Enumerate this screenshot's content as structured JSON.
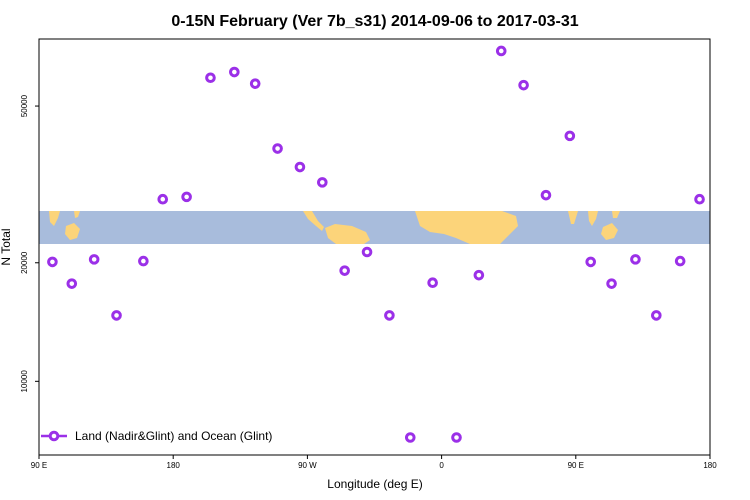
{
  "chart_data": {
    "type": "scatter",
    "title": "0-15N February (Ver 7b_s31)   2014-09-06 to 2017-03-31",
    "xlabel": "Longitude (deg E)",
    "ylabel": "N Total",
    "x_ticks": [
      {
        "value": 90,
        "label": "90 E"
      },
      {
        "value": 180,
        "label": "180"
      },
      {
        "value": 270,
        "label": "90 W"
      },
      {
        "value": 360,
        "label": "0"
      },
      {
        "value": 450,
        "label": "90 E"
      },
      {
        "value": 540,
        "label": "180"
      }
    ],
    "y_ticks": [
      {
        "value": 10000,
        "label": "10000"
      },
      {
        "value": 20000,
        "label": "20000"
      },
      {
        "value": 50000,
        "label": "50000"
      }
    ],
    "xlim": [
      90,
      540
    ],
    "ylim_log": [
      6500,
      74000
    ],
    "y_scale": "log",
    "map_band_lat": "0-15N",
    "series": [
      {
        "name": "Land (Nadir&Glint) and Ocean (Glint)",
        "color": "#9b30e8",
        "points": [
          {
            "x": 99,
            "y": 20100
          },
          {
            "x": 112,
            "y": 17700
          },
          {
            "x": 127,
            "y": 20400
          },
          {
            "x": 142,
            "y": 14700
          },
          {
            "x": 160,
            "y": 20200
          },
          {
            "x": 173,
            "y": 29000
          },
          {
            "x": 189,
            "y": 29400
          },
          {
            "x": 205,
            "y": 59000
          },
          {
            "x": 221,
            "y": 61000
          },
          {
            "x": 235,
            "y": 57000
          },
          {
            "x": 250,
            "y": 39000
          },
          {
            "x": 265,
            "y": 35000
          },
          {
            "x": 280,
            "y": 32000
          },
          {
            "x": 295,
            "y": 19100
          },
          {
            "x": 310,
            "y": 21300
          },
          {
            "x": 325,
            "y": 14700
          },
          {
            "x": 339,
            "y": 7200
          },
          {
            "x": 354,
            "y": 17800
          },
          {
            "x": 370,
            "y": 7200
          },
          {
            "x": 385,
            "y": 18600
          },
          {
            "x": 400,
            "y": 69000
          },
          {
            "x": 415,
            "y": 56500
          },
          {
            "x": 430,
            "y": 29700
          },
          {
            "x": 446,
            "y": 42000
          },
          {
            "x": 460,
            "y": 20100
          },
          {
            "x": 474,
            "y": 17700
          },
          {
            "x": 490,
            "y": 20400
          },
          {
            "x": 504,
            "y": 14700
          },
          {
            "x": 520,
            "y": 20200
          },
          {
            "x": 533,
            "y": 29000
          }
        ]
      }
    ],
    "legend": {
      "position": "bottom-left"
    },
    "grid": false,
    "colors": {
      "ocean": "#a8bcdc",
      "land": "#fcd47a",
      "frame": "#000000"
    }
  }
}
